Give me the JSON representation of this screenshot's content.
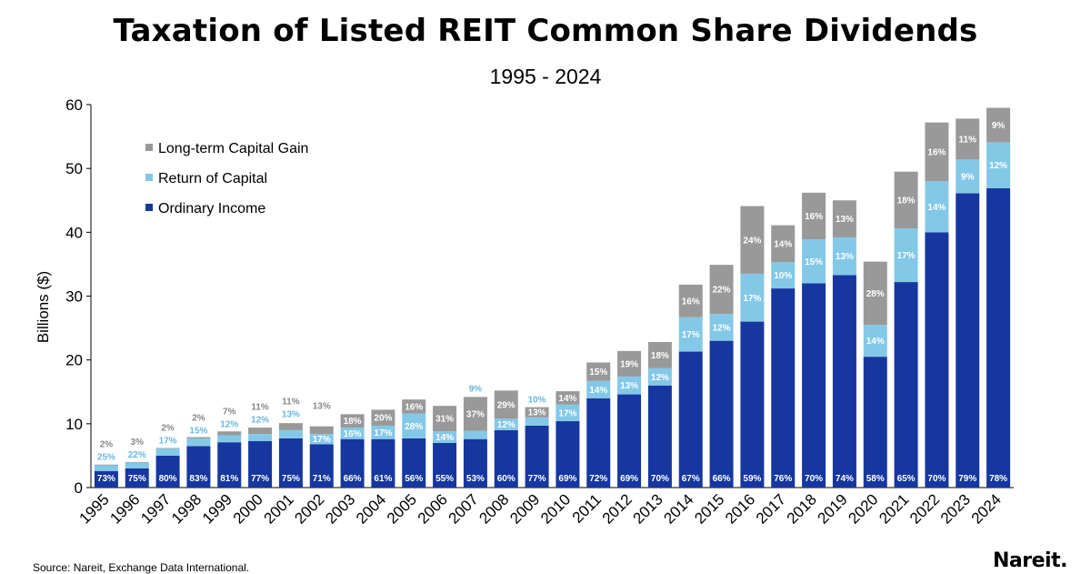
{
  "colors": {
    "ordinary": "#1637a0",
    "return_of_capital": "#84c8e8",
    "capital_gain": "#999999",
    "label_outside_capital_gain": "#888888",
    "label_outside_return": "#6ab8e0"
  },
  "logo_text": "Nareit.",
  "source": "Source: Nareit, Exchange Data International.",
  "chart_data": {
    "type": "bar",
    "stacked": true,
    "title": "Taxation of Listed REIT Common Share Dividends",
    "subtitle": "1995 - 2024",
    "ylabel": "Billions ($)",
    "xlabel": "",
    "ylim": [
      0,
      60
    ],
    "yticks": [
      "0",
      "10",
      "20",
      "30",
      "40",
      "50",
      "60"
    ],
    "grid": false,
    "legend_position": "top-left",
    "categories": [
      "1995",
      "1996",
      "1997",
      "1998",
      "1999",
      "2000",
      "2001",
      "2002",
      "2003",
      "2004",
      "2005",
      "2006",
      "2007",
      "2008",
      "2009",
      "2010",
      "2011",
      "2012",
      "2013",
      "2014",
      "2015",
      "2016",
      "2017",
      "2018",
      "2019",
      "2020",
      "2021",
      "2022",
      "2023",
      "2024"
    ],
    "totals": [
      3.6,
      4.0,
      6.2,
      7.8,
      8.8,
      9.5,
      10.3,
      9.6,
      11.5,
      12.4,
      13.8,
      12.8,
      14.3,
      15.0,
      12.6,
      15.1,
      19.5,
      21.2,
      22.8,
      31.8,
      34.9,
      44.1,
      41.1,
      45.7,
      45.0,
      35.4,
      49.5,
      57.2,
      58.4,
      60.1
    ],
    "series": [
      {
        "name": "Ordinary Income",
        "labels": [
          "73%",
          "75%",
          "80%",
          "83%",
          "81%",
          "77%",
          "75%",
          "71%",
          "66%",
          "61%",
          "56%",
          "55%",
          "53%",
          "60%",
          "77%",
          "69%",
          "72%",
          "69%",
          "70%",
          "67%",
          "66%",
          "59%",
          "76%",
          "70%",
          "74%",
          "58%",
          "65%",
          "70%",
          "79%",
          "78%"
        ],
        "values": [
          2.6,
          3.0,
          5.0,
          6.5,
          7.1,
          7.3,
          7.7,
          6.8,
          7.6,
          7.6,
          7.7,
          7.0,
          7.6,
          9.0,
          9.7,
          10.4,
          14.0,
          14.6,
          16.0,
          21.3,
          23.0,
          26.0,
          31.2,
          32.0,
          33.3,
          20.5,
          32.2,
          40.0,
          46.1,
          46.9
        ]
      },
      {
        "name": "Return of Capital",
        "labels": [
          "25%",
          "22%",
          "17%",
          "15%",
          "12%",
          "12%",
          "13%",
          "17%",
          "16%",
          "17%",
          "28%",
          "14%",
          "9%",
          "12%",
          "10%",
          "17%",
          "14%",
          "13%",
          "12%",
          "17%",
          "12%",
          "17%",
          "10%",
          "15%",
          "13%",
          "14%",
          "17%",
          "14%",
          "9%",
          "12%"
        ],
        "values": [
          0.9,
          0.9,
          1.1,
          1.2,
          1.1,
          1.1,
          1.3,
          1.6,
          1.8,
          2.1,
          3.9,
          1.8,
          1.3,
          1.8,
          1.3,
          2.6,
          2.7,
          2.8,
          2.7,
          5.4,
          4.2,
          7.5,
          4.1,
          6.9,
          5.9,
          5.0,
          8.4,
          8.0,
          5.3,
          7.2
        ]
      },
      {
        "name": "Long-term Capital Gain",
        "labels": [
          "2%",
          "3%",
          "2%",
          "2%",
          "7%",
          "11%",
          "11%",
          "13%",
          "18%",
          "20%",
          "16%",
          "31%",
          "37%",
          "29%",
          "13%",
          "14%",
          "15%",
          "19%",
          "18%",
          "16%",
          "22%",
          "24%",
          "14%",
          "16%",
          "13%",
          "28%",
          "18%",
          "16%",
          "11%",
          "9%"
        ],
        "values": [
          0.1,
          0.1,
          0.1,
          0.2,
          0.6,
          1.0,
          1.1,
          1.2,
          2.1,
          2.5,
          2.2,
          4.0,
          5.3,
          4.4,
          1.6,
          2.1,
          2.9,
          4.0,
          4.1,
          5.1,
          7.7,
          10.6,
          5.8,
          7.3,
          5.8,
          9.9,
          8.9,
          9.2,
          6.4,
          5.4
        ]
      }
    ],
    "legend": [
      "Long-term Capital Gain",
      "Return of Capital",
      "Ordinary Income"
    ]
  }
}
